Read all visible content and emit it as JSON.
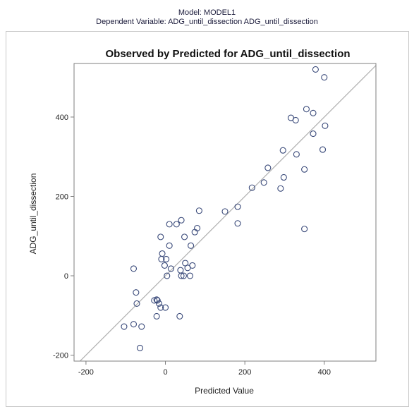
{
  "header": {
    "model": "Model: MODEL1",
    "dependent": "Dependent Variable: ADG_until_dissection ADG_until_dissection"
  },
  "chart_data": {
    "type": "scatter",
    "title": "Observed by Predicted for ADG_until_dissection",
    "xlabel": "Predicted Value",
    "ylabel": "ADG_until_dissection",
    "xlim": [
      -230,
      530
    ],
    "ylim": [
      -215,
      535
    ],
    "xticks": [
      -200,
      0,
      200,
      400
    ],
    "yticks": [
      -200,
      0,
      200,
      400
    ],
    "reference_line": "y = x",
    "grid": false,
    "colors": {
      "marker": "#3a4a7a",
      "reference": "#b4b4b4",
      "frame": "#7f7f7f"
    },
    "points": [
      {
        "x": 378,
        "y": 520
      },
      {
        "x": 400,
        "y": 500
      },
      {
        "x": 355,
        "y": 420
      },
      {
        "x": 372,
        "y": 410
      },
      {
        "x": 316,
        "y": 398
      },
      {
        "x": 328,
        "y": 392
      },
      {
        "x": 402,
        "y": 378
      },
      {
        "x": 372,
        "y": 358
      },
      {
        "x": 296,
        "y": 316
      },
      {
        "x": 396,
        "y": 318
      },
      {
        "x": 330,
        "y": 306
      },
      {
        "x": 258,
        "y": 272
      },
      {
        "x": 350,
        "y": 268
      },
      {
        "x": 298,
        "y": 248
      },
      {
        "x": 248,
        "y": 235
      },
      {
        "x": 218,
        "y": 222
      },
      {
        "x": 290,
        "y": 220
      },
      {
        "x": 182,
        "y": 174
      },
      {
        "x": 150,
        "y": 162
      },
      {
        "x": 182,
        "y": 132
      },
      {
        "x": 350,
        "y": 118
      },
      {
        "x": 85,
        "y": 164
      },
      {
        "x": 40,
        "y": 140
      },
      {
        "x": 10,
        "y": 130
      },
      {
        "x": 28,
        "y": 130
      },
      {
        "x": 80,
        "y": 120
      },
      {
        "x": 74,
        "y": 110
      },
      {
        "x": -12,
        "y": 98
      },
      {
        "x": 48,
        "y": 98
      },
      {
        "x": 64,
        "y": 76
      },
      {
        "x": 10,
        "y": 76
      },
      {
        "x": -8,
        "y": 56
      },
      {
        "x": -10,
        "y": 42
      },
      {
        "x": 2,
        "y": 42
      },
      {
        "x": 50,
        "y": 32
      },
      {
        "x": 68,
        "y": 26
      },
      {
        "x": -2,
        "y": 26
      },
      {
        "x": 14,
        "y": 18
      },
      {
        "x": 56,
        "y": 20
      },
      {
        "x": -80,
        "y": 18
      },
      {
        "x": 38,
        "y": 14
      },
      {
        "x": 4,
        "y": 0
      },
      {
        "x": 40,
        "y": 0
      },
      {
        "x": 46,
        "y": 0
      },
      {
        "x": 62,
        "y": 0
      },
      {
        "x": -74,
        "y": -42
      },
      {
        "x": -28,
        "y": -62
      },
      {
        "x": -22,
        "y": -60
      },
      {
        "x": -20,
        "y": -62
      },
      {
        "x": -72,
        "y": -70
      },
      {
        "x": -16,
        "y": -70
      },
      {
        "x": -12,
        "y": -80
      },
      {
        "x": 0,
        "y": -80
      },
      {
        "x": -22,
        "y": -102
      },
      {
        "x": 36,
        "y": -102
      },
      {
        "x": -104,
        "y": -128
      },
      {
        "x": -80,
        "y": -122
      },
      {
        "x": -60,
        "y": -128
      },
      {
        "x": -64,
        "y": -182
      }
    ]
  }
}
